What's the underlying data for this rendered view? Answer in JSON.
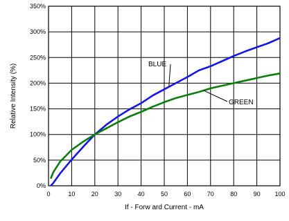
{
  "chart_data": {
    "type": "line",
    "title": "",
    "xlabel": "If - Forw ard Current - mA",
    "ylabel": "Relative Intensity (%)",
    "xlim": [
      0,
      100
    ],
    "ylim": [
      0,
      350
    ],
    "xticks": [
      0,
      10,
      20,
      30,
      40,
      50,
      60,
      70,
      80,
      90,
      100
    ],
    "yticks": [
      0,
      50,
      100,
      150,
      200,
      250,
      300,
      350
    ],
    "xtick_labels": [
      "0",
      "10",
      "20",
      "30",
      "40",
      "50",
      "60",
      "70",
      "80",
      "90",
      "100"
    ],
    "ytick_labels": [
      "0%",
      "50%",
      "100%",
      "150%",
      "200%",
      "250%",
      "300%",
      "350%"
    ],
    "grid": true,
    "legend": "none",
    "series": [
      {
        "name": "BLUE",
        "color": "#1515e8",
        "x": [
          1,
          2,
          5,
          10,
          15,
          20,
          25,
          30,
          35,
          40,
          45,
          50,
          55,
          60,
          65,
          70,
          75,
          80,
          85,
          90,
          95,
          100
        ],
        "y": [
          0,
          5,
          24,
          51,
          76,
          100,
          119,
          135,
          149,
          161,
          176,
          188,
          200,
          212,
          225,
          233,
          243,
          253,
          262,
          270,
          278,
          288
        ]
      },
      {
        "name": "GREEN",
        "color": "#0a7d0a",
        "x": [
          1,
          2,
          5,
          10,
          15,
          20,
          25,
          30,
          35,
          40,
          45,
          50,
          55,
          60,
          65,
          70,
          75,
          80,
          85,
          90,
          95,
          100
        ],
        "y": [
          14,
          26,
          47,
          70,
          86,
          100,
          112,
          124,
          135,
          144,
          154,
          163,
          171,
          177,
          183,
          190,
          195,
          200,
          205,
          210,
          215,
          219
        ]
      }
    ],
    "annotations": [
      {
        "text": "BLUE",
        "series": "BLUE",
        "at_x": 52
      },
      {
        "text": "GREEN",
        "series": "GREEN",
        "at_x": 67
      }
    ]
  }
}
